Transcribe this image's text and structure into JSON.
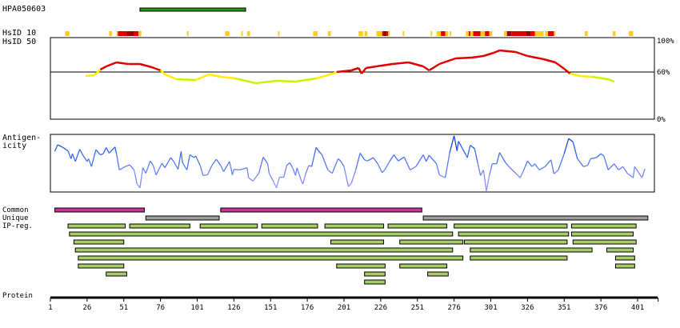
{
  "labels": {
    "antibody": "HPA050603",
    "hsid10": "HsID 10",
    "hsid50": "HsID 50",
    "antigenicity1": "Antigen-",
    "antigenicity2": "icity",
    "common": "Common",
    "unique": "Unique",
    "ipreg": "IP-reg.",
    "protein": "Protein",
    "pct100": "100%",
    "pct60": "60%",
    "pct0": "0%"
  },
  "colors": {
    "antigen": "#229922",
    "common": "#cc3399",
    "unique": "#a0a0a0",
    "ip": "#a8cc66",
    "red": "#e00000",
    "darkred": "#990000",
    "yellow": "#ffcc22",
    "hs_red": "#e00000",
    "hs_yellow": "#ffee00",
    "hs_green": "#ccf000"
  },
  "chart_data": {
    "type": "line",
    "protein_length": 415,
    "x_ticks": [
      1,
      26,
      51,
      76,
      101,
      126,
      151,
      176,
      201,
      226,
      251,
      276,
      301,
      326,
      351,
      376,
      401
    ],
    "antigen": [
      62,
      134
    ],
    "hsid10": [
      [
        11,
        14,
        "y"
      ],
      [
        41,
        43,
        "y"
      ],
      [
        46,
        47,
        "y"
      ],
      [
        47,
        53,
        "r"
      ],
      [
        53,
        58,
        "d"
      ],
      [
        58,
        61,
        "r"
      ],
      [
        61,
        63,
        "y"
      ],
      [
        94,
        95,
        "y"
      ],
      [
        120,
        123,
        "y"
      ],
      [
        131,
        132,
        "y"
      ],
      [
        135,
        137,
        "y"
      ],
      [
        156,
        157,
        "y"
      ],
      [
        180,
        183,
        "y"
      ],
      [
        190,
        192,
        "y"
      ],
      [
        211,
        214,
        "y"
      ],
      [
        215,
        217,
        "y"
      ],
      [
        223,
        227,
        "y"
      ],
      [
        227,
        228,
        "r"
      ],
      [
        228,
        230,
        "d"
      ],
      [
        230,
        231,
        "r"
      ],
      [
        231,
        232,
        "y"
      ],
      [
        241,
        242,
        "y"
      ],
      [
        260,
        261,
        "y"
      ],
      [
        264,
        267,
        "y"
      ],
      [
        267,
        270,
        "r"
      ],
      [
        270,
        272,
        "y"
      ],
      [
        273,
        274,
        "y"
      ],
      [
        284,
        286,
        "y"
      ],
      [
        286,
        287,
        "r"
      ],
      [
        287,
        289,
        "y"
      ],
      [
        289,
        294,
        "r"
      ],
      [
        294,
        297,
        "y"
      ],
      [
        297,
        300,
        "r"
      ],
      [
        300,
        302,
        "y"
      ],
      [
        310,
        312,
        "y"
      ],
      [
        312,
        315,
        "d"
      ],
      [
        315,
        325,
        "r"
      ],
      [
        325,
        328,
        "d"
      ],
      [
        328,
        331,
        "r"
      ],
      [
        331,
        337,
        "y"
      ],
      [
        338,
        340,
        "y"
      ],
      [
        340,
        344,
        "r"
      ],
      [
        344,
        345,
        "y"
      ],
      [
        365,
        367,
        "y"
      ],
      [
        384,
        386,
        "y"
      ],
      [
        395,
        398,
        "y"
      ]
    ],
    "hsid50": {
      "ylim": [
        0,
        100
      ],
      "threshold": 60,
      "points": [
        [
          25,
          55
        ],
        [
          31,
          56
        ],
        [
          35,
          63
        ],
        [
          39,
          67
        ],
        [
          46,
          72
        ],
        [
          54,
          70
        ],
        [
          62,
          70
        ],
        [
          70,
          66
        ],
        [
          76,
          62
        ],
        [
          79,
          57
        ],
        [
          87,
          51
        ],
        [
          100,
          50
        ],
        [
          109,
          57
        ],
        [
          117,
          54
        ],
        [
          127,
          52
        ],
        [
          141,
          46
        ],
        [
          155,
          49
        ],
        [
          168,
          48
        ],
        [
          182,
          52
        ],
        [
          190,
          56
        ],
        [
          196,
          60
        ],
        [
          206,
          62
        ],
        [
          211,
          65
        ],
        [
          213,
          58
        ],
        [
          216,
          65
        ],
        [
          223,
          67
        ],
        [
          234,
          70
        ],
        [
          245,
          72
        ],
        [
          255,
          67
        ],
        [
          259,
          62
        ],
        [
          266,
          70
        ],
        [
          277,
          77
        ],
        [
          288,
          78
        ],
        [
          296,
          80
        ],
        [
          303,
          84
        ],
        [
          307,
          87
        ],
        [
          318,
          85
        ],
        [
          326,
          80
        ],
        [
          337,
          76
        ],
        [
          345,
          72
        ],
        [
          351,
          64
        ],
        [
          355,
          58
        ],
        [
          362,
          55
        ],
        [
          370,
          54
        ],
        [
          381,
          51
        ],
        [
          385,
          48
        ]
      ]
    },
    "antigenicity": {
      "ylim": [
        0,
        100
      ],
      "points": [
        [
          4,
          71
        ],
        [
          6,
          83
        ],
        [
          9,
          79
        ],
        [
          13,
          72
        ],
        [
          15,
          58
        ],
        [
          16,
          67
        ],
        [
          18,
          53
        ],
        [
          21,
          75
        ],
        [
          23,
          65
        ],
        [
          26,
          53
        ],
        [
          27,
          58
        ],
        [
          29,
          44
        ],
        [
          32,
          74
        ],
        [
          35,
          65
        ],
        [
          37,
          67
        ],
        [
          39,
          78
        ],
        [
          41,
          68
        ],
        [
          45,
          79
        ],
        [
          46,
          67
        ],
        [
          48,
          38
        ],
        [
          52,
          44
        ],
        [
          55,
          47
        ],
        [
          58,
          38
        ],
        [
          60,
          13
        ],
        [
          62,
          6
        ],
        [
          64,
          42
        ],
        [
          66,
          32
        ],
        [
          69,
          54
        ],
        [
          71,
          46
        ],
        [
          73,
          29
        ],
        [
          77,
          50
        ],
        [
          79,
          42
        ],
        [
          83,
          60
        ],
        [
          85,
          53
        ],
        [
          88,
          39
        ],
        [
          90,
          71
        ],
        [
          91,
          51
        ],
        [
          94,
          38
        ],
        [
          96,
          65
        ],
        [
          99,
          60
        ],
        [
          100,
          63
        ],
        [
          103,
          46
        ],
        [
          105,
          28
        ],
        [
          108,
          29
        ],
        [
          111,
          46
        ],
        [
          114,
          57
        ],
        [
          117,
          46
        ],
        [
          119,
          35
        ],
        [
          123,
          53
        ],
        [
          125,
          29
        ],
        [
          126,
          39
        ],
        [
          130,
          38
        ],
        [
          135,
          42
        ],
        [
          136,
          24
        ],
        [
          139,
          18
        ],
        [
          143,
          32
        ],
        [
          146,
          61
        ],
        [
          149,
          49
        ],
        [
          150,
          32
        ],
        [
          153,
          17
        ],
        [
          155,
          6
        ],
        [
          157,
          25
        ],
        [
          160,
          25
        ],
        [
          162,
          46
        ],
        [
          164,
          51
        ],
        [
          166,
          42
        ],
        [
          168,
          28
        ],
        [
          169,
          42
        ],
        [
          172,
          18
        ],
        [
          173,
          13
        ],
        [
          175,
          32
        ],
        [
          177,
          46
        ],
        [
          179,
          44
        ],
        [
          182,
          78
        ],
        [
          184,
          71
        ],
        [
          186,
          65
        ],
        [
          190,
          38
        ],
        [
          193,
          32
        ],
        [
          197,
          58
        ],
        [
          199,
          53
        ],
        [
          201,
          44
        ],
        [
          204,
          8
        ],
        [
          206,
          14
        ],
        [
          209,
          38
        ],
        [
          212,
          68
        ],
        [
          215,
          56
        ],
        [
          217,
          54
        ],
        [
          221,
          60
        ],
        [
          224,
          49
        ],
        [
          227,
          33
        ],
        [
          229,
          39
        ],
        [
          232,
          53
        ],
        [
          235,
          65
        ],
        [
          238,
          54
        ],
        [
          242,
          61
        ],
        [
          246,
          38
        ],
        [
          250,
          44
        ],
        [
          255,
          65
        ],
        [
          257,
          53
        ],
        [
          259,
          64
        ],
        [
          264,
          49
        ],
        [
          266,
          29
        ],
        [
          270,
          24
        ],
        [
          273,
          69
        ],
        [
          276,
          99
        ],
        [
          278,
          72
        ],
        [
          279,
          89
        ],
        [
          284,
          65
        ],
        [
          285,
          60
        ],
        [
          287,
          82
        ],
        [
          290,
          76
        ],
        [
          292,
          51
        ],
        [
          294,
          28
        ],
        [
          296,
          38
        ],
        [
          298,
          0
        ],
        [
          300,
          28
        ],
        [
          302,
          49
        ],
        [
          305,
          49
        ],
        [
          307,
          69
        ],
        [
          311,
          51
        ],
        [
          314,
          42
        ],
        [
          318,
          32
        ],
        [
          321,
          24
        ],
        [
          323,
          35
        ],
        [
          326,
          54
        ],
        [
          329,
          44
        ],
        [
          331,
          49
        ],
        [
          334,
          38
        ],
        [
          338,
          44
        ],
        [
          342,
          56
        ],
        [
          344,
          31
        ],
        [
          347,
          38
        ],
        [
          351,
          67
        ],
        [
          354,
          94
        ],
        [
          357,
          88
        ],
        [
          360,
          58
        ],
        [
          364,
          44
        ],
        [
          367,
          46
        ],
        [
          369,
          58
        ],
        [
          373,
          60
        ],
        [
          376,
          67
        ],
        [
          378,
          63
        ],
        [
          381,
          38
        ],
        [
          385,
          49
        ],
        [
          388,
          38
        ],
        [
          391,
          44
        ],
        [
          394,
          32
        ],
        [
          398,
          24
        ],
        [
          399,
          44
        ],
        [
          404,
          24
        ],
        [
          406,
          40
        ]
      ]
    },
    "common": [
      [
        4,
        65
      ],
      [
        117,
        254
      ]
    ],
    "unique": [
      [
        66,
        116
      ],
      [
        255,
        408
      ]
    ],
    "ip_rows": [
      [
        [
          13,
          52
        ],
        [
          55,
          96
        ],
        [
          103,
          142
        ],
        [
          145,
          183
        ],
        [
          188,
          228
        ],
        [
          231,
          271
        ],
        [
          276,
          353
        ],
        [
          356,
          400
        ]
      ],
      [
        [
          14,
          275
        ],
        [
          279,
          354
        ],
        [
          356,
          398
        ]
      ],
      [
        [
          17,
          51
        ],
        [
          192,
          228
        ],
        [
          239,
          282
        ],
        [
          283,
          353
        ],
        [
          357,
          400
        ]
      ],
      [
        [
          18,
          275
        ],
        [
          287,
          370
        ],
        [
          380,
          398
        ]
      ],
      [
        [
          20,
          282
        ],
        [
          287,
          353
        ],
        [
          386,
          399
        ]
      ],
      [
        [
          20,
          51
        ],
        [
          196,
          229
        ],
        [
          239,
          271
        ],
        [
          386,
          399
        ]
      ],
      [
        [
          39,
          53
        ],
        [
          215,
          229
        ],
        [
          258,
          272
        ]
      ],
      [
        [
          215,
          229
        ]
      ]
    ]
  }
}
